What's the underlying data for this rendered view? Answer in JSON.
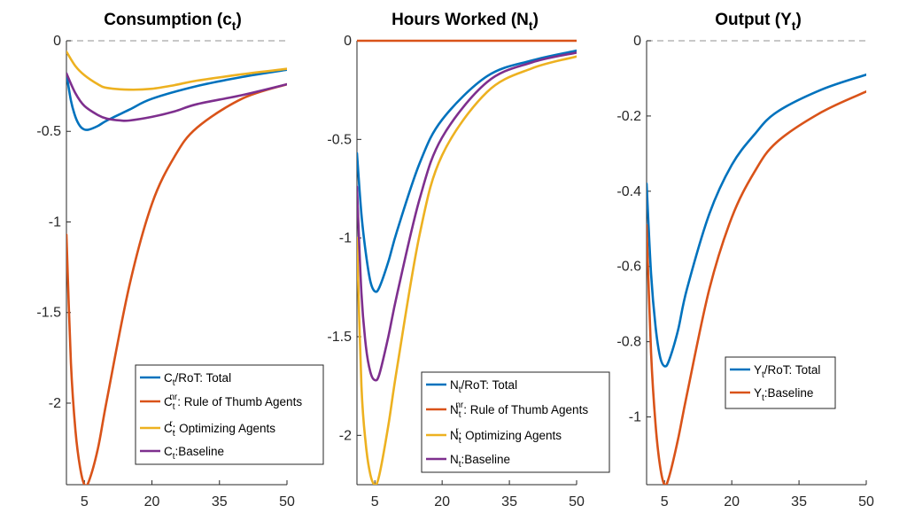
{
  "chart_data": [
    {
      "type": "line",
      "title": "Consumption (c",
      "title_sub": "t",
      "title_close": ")",
      "xlim": [
        1,
        50
      ],
      "ylim": [
        -2.45,
        0
      ],
      "xticks": [
        5,
        20,
        35,
        50
      ],
      "yticks": [
        0,
        -0.5,
        -1,
        -1.5,
        -2
      ],
      "ytick_labels": [
        "0",
        "-0.5",
        "-1",
        "-1.5",
        "-2"
      ],
      "zero_line": "dashed gray",
      "legend_position": "lower-right",
      "series": [
        {
          "label_main": "C",
          "label_sub": "t",
          "label_sup": "",
          "label_rest": "/RoT: Total",
          "color": "#0072BD",
          "x": [
            1,
            2,
            3,
            4,
            5,
            6,
            8,
            10,
            15,
            20,
            30,
            40,
            50
          ],
          "y": [
            -0.18,
            -0.33,
            -0.42,
            -0.47,
            -0.49,
            -0.49,
            -0.47,
            -0.44,
            -0.38,
            -0.32,
            -0.25,
            -0.2,
            -0.16
          ]
        },
        {
          "label_main": "C",
          "label_sub": "t",
          "label_sup": "nr",
          "label_rest": ": Rule of Thumb Agents",
          "color": "#D95319",
          "x": [
            1,
            2,
            3,
            4,
            5,
            6,
            8,
            10,
            15,
            20,
            25,
            30,
            40,
            50
          ],
          "y": [
            -1.07,
            -1.78,
            -2.15,
            -2.35,
            -2.45,
            -2.43,
            -2.25,
            -1.98,
            -1.35,
            -0.9,
            -0.64,
            -0.48,
            -0.32,
            -0.24
          ]
        },
        {
          "label_main": "C",
          "label_sub": "t",
          "label_sup": "r",
          "label_rest": ": Optimizing Agents",
          "color": "#EDB120",
          "x": [
            1,
            3,
            5,
            8,
            10,
            15,
            20,
            25,
            30,
            40,
            50
          ],
          "y": [
            -0.06,
            -0.14,
            -0.19,
            -0.24,
            -0.26,
            -0.27,
            -0.265,
            -0.245,
            -0.22,
            -0.185,
            -0.155
          ]
        },
        {
          "label_main": "C",
          "label_sub": "t",
          "label_sup": "",
          "label_rest": ":Baseline",
          "color": "#7E2F8E",
          "x": [
            1,
            3,
            5,
            8,
            10,
            13,
            15,
            20,
            25,
            30,
            40,
            50
          ],
          "y": [
            -0.18,
            -0.29,
            -0.36,
            -0.41,
            -0.43,
            -0.44,
            -0.44,
            -0.42,
            -0.39,
            -0.35,
            -0.3,
            -0.24
          ]
        }
      ]
    },
    {
      "type": "line",
      "title": "Hours Worked (N",
      "title_sub": "t",
      "title_close": ")",
      "xlim": [
        1,
        50
      ],
      "ylim": [
        -2.25,
        0
      ],
      "xticks": [
        5,
        20,
        35,
        50
      ],
      "yticks": [
        0,
        -0.5,
        -1,
        -1.5,
        -2
      ],
      "ytick_labels": [
        "0",
        "-0.5",
        "-1",
        "-1.5",
        "-2"
      ],
      "zero_line": "dashed gray",
      "legend_position": "lower-right",
      "series": [
        {
          "label_main": "N",
          "label_sub": "t",
          "label_sup": "",
          "label_rest": "/RoT: Total",
          "color": "#0072BD",
          "x": [
            1,
            2,
            3,
            4,
            5,
            6,
            8,
            10,
            15,
            20,
            30,
            40,
            50
          ],
          "y": [
            -0.57,
            -0.88,
            -1.08,
            -1.22,
            -1.27,
            -1.25,
            -1.12,
            -0.96,
            -0.62,
            -0.4,
            -0.18,
            -0.1,
            -0.05
          ]
        },
        {
          "label_main": "N",
          "label_sub": "t",
          "label_sup": "nr",
          "label_rest": ": Rule of Thumb Agents",
          "color": "#D95319",
          "x": [
            1,
            50
          ],
          "y": [
            0,
            0
          ]
        },
        {
          "label_main": "N",
          "label_sub": "t",
          "label_sup": "r",
          "label_rest": ": Optimizing Agents",
          "color": "#EDB120",
          "x": [
            1,
            2,
            3,
            4,
            5,
            6,
            8,
            10,
            15,
            20,
            30,
            40,
            50
          ],
          "y": [
            -1.0,
            -1.75,
            -2.05,
            -2.2,
            -2.25,
            -2.2,
            -1.95,
            -1.65,
            -0.98,
            -0.58,
            -0.26,
            -0.14,
            -0.08
          ]
        },
        {
          "label_main": "N",
          "label_sub": "t",
          "label_sup": "",
          "label_rest": ":Baseline",
          "color": "#7E2F8E",
          "x": [
            1,
            2,
            3,
            4,
            5,
            6,
            8,
            10,
            15,
            20,
            30,
            40,
            50
          ],
          "y": [
            -0.74,
            -1.28,
            -1.55,
            -1.68,
            -1.72,
            -1.69,
            -1.5,
            -1.28,
            -0.8,
            -0.49,
            -0.21,
            -0.11,
            -0.06
          ]
        }
      ]
    },
    {
      "type": "line",
      "title": "Output (Y",
      "title_sub": "t",
      "title_close": ")",
      "xlim": [
        1,
        50
      ],
      "ylim": [
        -1.18,
        0
      ],
      "xticks": [
        5,
        20,
        35,
        50
      ],
      "yticks": [
        0,
        -0.2,
        -0.4,
        -0.6,
        -0.8,
        -1
      ],
      "ytick_labels": [
        "0",
        "-0.2",
        "-0.4",
        "-0.6",
        "-0.8",
        "-1"
      ],
      "zero_line": "dashed gray",
      "legend_position": "lower-right",
      "series": [
        {
          "label_main": "Y",
          "label_sub": "t",
          "label_sup": "",
          "label_rest": "/RoT: Total",
          "color": "#0072BD",
          "x": [
            1,
            2,
            3,
            4,
            5,
            6,
            8,
            10,
            15,
            20,
            25,
            30,
            40,
            50
          ],
          "y": [
            -0.38,
            -0.62,
            -0.76,
            -0.84,
            -0.865,
            -0.85,
            -0.77,
            -0.66,
            -0.46,
            -0.33,
            -0.25,
            -0.19,
            -0.13,
            -0.09
          ]
        },
        {
          "label_main": "Y",
          "label_sub": "t",
          "label_sup": "",
          "label_rest": ":Baseline",
          "color": "#D95319",
          "x": [
            1,
            2,
            3,
            4,
            5,
            6,
            8,
            10,
            15,
            20,
            25,
            30,
            40,
            50
          ],
          "y": [
            -0.49,
            -0.83,
            -1.02,
            -1.13,
            -1.18,
            -1.16,
            -1.06,
            -0.94,
            -0.66,
            -0.47,
            -0.35,
            -0.27,
            -0.19,
            -0.135
          ]
        }
      ]
    }
  ]
}
